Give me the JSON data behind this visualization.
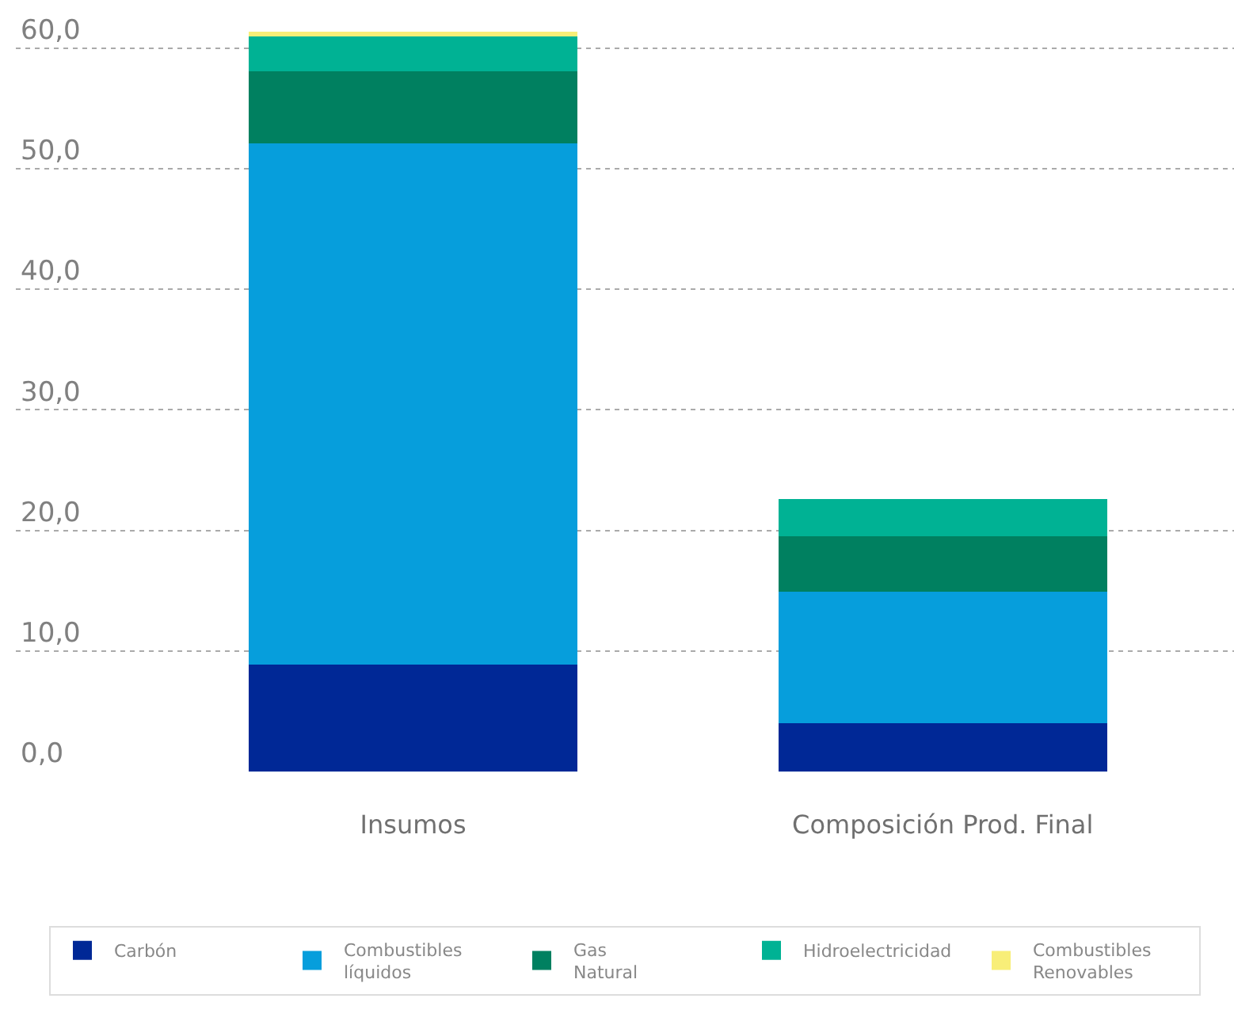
{
  "chart_data": {
    "type": "bar",
    "stacked": true,
    "categories": [
      "Insumos",
      "Composición Prod. Final"
    ],
    "series": [
      {
        "name": "Carbón",
        "color": "#002896",
        "values": [
          8.9,
          4.0
        ]
      },
      {
        "name": "Combustibles líquidos",
        "color": "#069edc",
        "values": [
          43.2,
          10.9
        ]
      },
      {
        "name": "Gas Natural",
        "color": "#008060",
        "values": [
          6.0,
          4.6
        ]
      },
      {
        "name": "Hidroelectricidad",
        "color": "#00b294",
        "values": [
          2.9,
          3.1
        ]
      },
      {
        "name": "Combustibles Renovables",
        "color": "#f8ee78",
        "values": [
          0.4,
          0
        ]
      }
    ],
    "ylim": [
      0,
      64
    ],
    "yticks": [
      {
        "value": 0,
        "label": "0,0"
      },
      {
        "value": 10,
        "label": "10,0"
      },
      {
        "value": 20,
        "label": "20,0"
      },
      {
        "value": 30,
        "label": "30,0"
      },
      {
        "value": 40,
        "label": "40,0"
      },
      {
        "value": 50,
        "label": "50,0"
      },
      {
        "value": 60,
        "label": "60,0"
      }
    ],
    "grid": "y",
    "legend": "bottom"
  }
}
